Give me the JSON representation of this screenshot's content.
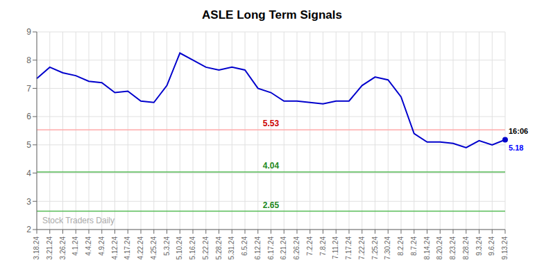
{
  "chart_data": {
    "type": "line",
    "title": "ASLE Long Term Signals",
    "categories": [
      "3.18.24",
      "3.21.24",
      "3.26.24",
      "4.1.24",
      "4.4.24",
      "4.9.24",
      "4.12.24",
      "4.17.24",
      "4.22.24",
      "4.25.24",
      "5.3.24",
      "5.10.24",
      "5.16.24",
      "5.22.24",
      "5.28.24",
      "5.31.24",
      "6.5.24",
      "6.12.24",
      "6.17.24",
      "6.21.24",
      "6.26.24",
      "7.2.24",
      "7.8.24",
      "7.11.24",
      "7.17.24",
      "7.22.24",
      "7.25.24",
      "7.30.24",
      "8.2.24",
      "8.7.24",
      "8.14.24",
      "8.20.24",
      "8.23.24",
      "8.28.24",
      "9.3.24",
      "9.6.24",
      "9.13.24"
    ],
    "values": [
      7.35,
      7.75,
      7.55,
      7.45,
      7.25,
      7.2,
      6.85,
      6.9,
      6.55,
      6.5,
      7.1,
      8.25,
      8.0,
      7.75,
      7.65,
      7.75,
      7.65,
      7.0,
      6.85,
      6.55,
      6.55,
      6.5,
      6.45,
      6.55,
      6.55,
      7.1,
      7.4,
      7.3,
      6.7,
      5.4,
      5.1,
      5.1,
      5.05,
      4.9,
      5.15,
      5.0,
      5.18
    ],
    "color": "#0000cc",
    "ylim": [
      2,
      9
    ],
    "yticks": [
      2,
      3,
      4,
      5,
      6,
      7,
      8,
      9
    ],
    "grid": true,
    "hlines": [
      {
        "value": 5.53,
        "color": "#ffaaaa",
        "label": "5.53",
        "label_color": "#cc0000"
      },
      {
        "value": 4.04,
        "color": "#55bb55",
        "label": "4.04",
        "label_color": "#228822"
      },
      {
        "value": 2.65,
        "color": "#55bb55",
        "label": "2.65",
        "label_color": "#228822"
      }
    ],
    "end_labels": [
      {
        "text": "16:06",
        "color": "#000000"
      },
      {
        "text": "5.18",
        "color": "#0000ff"
      }
    ],
    "end_dot_color": "#0000cc",
    "watermark": {
      "text": "Stock Traders Daily",
      "color": "#aaaaaa"
    }
  }
}
